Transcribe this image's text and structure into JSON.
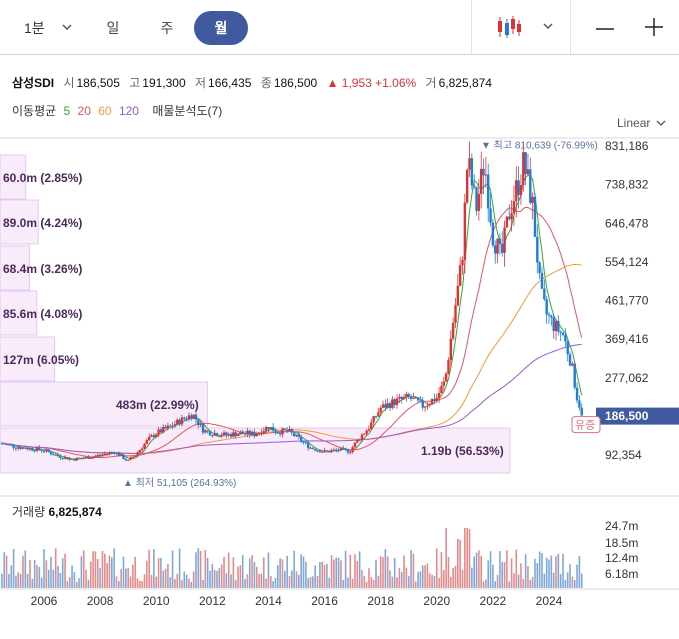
{
  "toolbar": {
    "timeframe_selected": "1분",
    "tabs": [
      {
        "label": "일",
        "active": false
      },
      {
        "label": "주",
        "active": false
      },
      {
        "label": "월",
        "active": true
      }
    ],
    "chart_type_icon": "candlestick-icon",
    "icons": [
      "chevron-down-icon",
      "minus-icon",
      "plus-icon"
    ]
  },
  "quote": {
    "symbol": "삼성SDI",
    "open_label": "시",
    "open": "186,505",
    "high_label": "고",
    "high": "191,300",
    "low_label": "저",
    "low": "166,435",
    "close_label": "종",
    "close": "186,500",
    "change": "▲ 1,953",
    "change_pct": "+1.06%",
    "volume_label": "거",
    "volume": "6,825,874"
  },
  "indicators": {
    "ma_label": "이동평균",
    "ma_periods": [
      "5",
      "20",
      "60",
      "120"
    ],
    "ma_colors": [
      "#3aa43a",
      "#e8545c",
      "#f29a3f",
      "#9b59d0"
    ],
    "vp_label": "매물분석도(7)"
  },
  "scale_mode": "Linear",
  "colors": {
    "up": "#e03131",
    "down": "#1c7ed6",
    "accent": "#3f5a9e"
  },
  "chart_data": {
    "type": "candlestick",
    "y_ticks": [
      "831,186",
      "738,832",
      "646,478",
      "554,124",
      "461,770",
      "369,416",
      "277,062",
      "92,354"
    ],
    "ylim": [
      50000,
      835000
    ],
    "x_ticks": [
      "2006",
      "2008",
      "2010",
      "2012",
      "2014",
      "2016",
      "2018",
      "2020",
      "2022",
      "2024"
    ],
    "current_price": "186,500",
    "current_badge": "유증",
    "high_marker": "▼ 최고 810,639 (-76.99%)",
    "high_marker_value": 810639,
    "low_marker": "▲ 최저 51,105 (264.93%)",
    "low_marker_value": 51105,
    "volume_profile": [
      {
        "label": "60.0m (2.85%)",
        "pct": 2.85
      },
      {
        "label": "89.0m (4.24%)",
        "pct": 4.24
      },
      {
        "label": "68.4m (3.26%)",
        "pct": 3.26
      },
      {
        "label": "85.6m (4.08%)",
        "pct": 4.08
      },
      {
        "label": "127m (6.05%)",
        "pct": 6.05
      },
      {
        "label": "483m (22.99%)",
        "pct": 22.99
      },
      {
        "label": "1.19b (56.53%)",
        "pct": 56.53
      }
    ],
    "price_path": [
      [
        2004.5,
        120000
      ],
      [
        2005.0,
        112000
      ],
      [
        2005.5,
        108000
      ],
      [
        2006.0,
        104000
      ],
      [
        2006.5,
        90000
      ],
      [
        2007.0,
        82000
      ],
      [
        2007.5,
        86000
      ],
      [
        2008.0,
        92000
      ],
      [
        2008.5,
        100000
      ],
      [
        2009.0,
        78000
      ],
      [
        2009.3,
        96000
      ],
      [
        2009.7,
        128000
      ],
      [
        2010.0,
        145000
      ],
      [
        2010.5,
        160000
      ],
      [
        2011.0,
        180000
      ],
      [
        2011.3,
        190000
      ],
      [
        2011.7,
        150000
      ],
      [
        2012.0,
        145000
      ],
      [
        2012.5,
        140000
      ],
      [
        2013.0,
        145000
      ],
      [
        2013.5,
        142000
      ],
      [
        2014.0,
        160000
      ],
      [
        2014.3,
        148000
      ],
      [
        2014.7,
        150000
      ],
      [
        2015.0,
        135000
      ],
      [
        2015.5,
        110000
      ],
      [
        2016.0,
        100000
      ],
      [
        2016.5,
        104000
      ],
      [
        2016.9,
        102000
      ],
      [
        2017.2,
        130000
      ],
      [
        2017.6,
        160000
      ],
      [
        2018.0,
        205000
      ],
      [
        2018.5,
        220000
      ],
      [
        2019.0,
        230000
      ],
      [
        2019.5,
        210000
      ],
      [
        2020.0,
        230000
      ],
      [
        2020.3,
        270000
      ],
      [
        2020.6,
        420000
      ],
      [
        2020.9,
        560000
      ],
      [
        2021.1,
        800000
      ],
      [
        2021.4,
        680000
      ],
      [
        2021.7,
        795000
      ],
      [
        2022.0,
        620000
      ],
      [
        2022.3,
        560000
      ],
      [
        2022.6,
        680000
      ],
      [
        2022.9,
        740000
      ],
      [
        2023.1,
        790000
      ],
      [
        2023.4,
        700000
      ],
      [
        2023.7,
        480000
      ],
      [
        2023.9,
        430000
      ],
      [
        2024.2,
        400000
      ],
      [
        2024.5,
        380000
      ],
      [
        2024.8,
        310000
      ],
      [
        2025.0,
        230000
      ],
      [
        2025.2,
        186500
      ]
    ],
    "volume_axis_ticks": [
      "24.7m",
      "18.5m",
      "12.4m",
      "6.18m"
    ],
    "volume_title": "거래량",
    "volume_value": "6,825,874"
  }
}
